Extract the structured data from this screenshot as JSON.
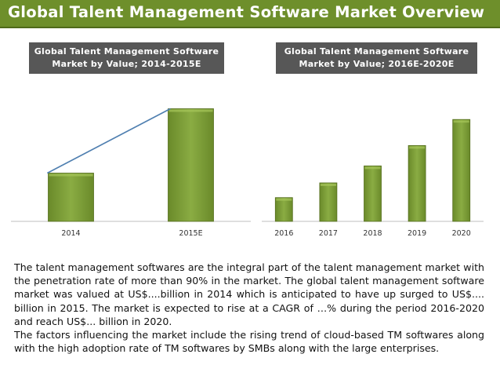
{
  "header": {
    "title": "Global Talent Management Software Market Overview",
    "bar_color": "#6e8f2b"
  },
  "chart_data": [
    {
      "type": "bar",
      "title_line1": "Global Talent Management Software",
      "title_line2": "Market by Value; 2014-2015E",
      "categories": [
        "2014",
        "2015E"
      ],
      "values": [
        30,
        70
      ],
      "trendline": true,
      "ylim": [
        0,
        80
      ],
      "bar_color": "#7a9a35"
    },
    {
      "type": "bar",
      "title_line1": "Global Talent Management Software",
      "title_line2": "Market by Value; 2016E-2020E",
      "categories": [
        "2016",
        "2017",
        "2018",
        "2019",
        "2020"
      ],
      "values": [
        21,
        34,
        49,
        67,
        90
      ],
      "ylim": [
        0,
        95
      ],
      "bar_color": "#7a9a35"
    }
  ],
  "description": {
    "paragraph1": "The talent management softwares are the integral part of the talent management market with the penetration rate of more than 90% in the market. The global talent management software market was valued at US$....billion in 2014 which is anticipated to have up surged  to US$.... billion in 2015. The market is expected to rise at a CAGR of …% during the period 2016-2020 and reach US$... billion in 2020.",
    "paragraph2": "The factors influencing the market include the rising trend of cloud-based TM softwares along with the high adoption rate of TM softwares by SMBs along with the large enterprises."
  }
}
